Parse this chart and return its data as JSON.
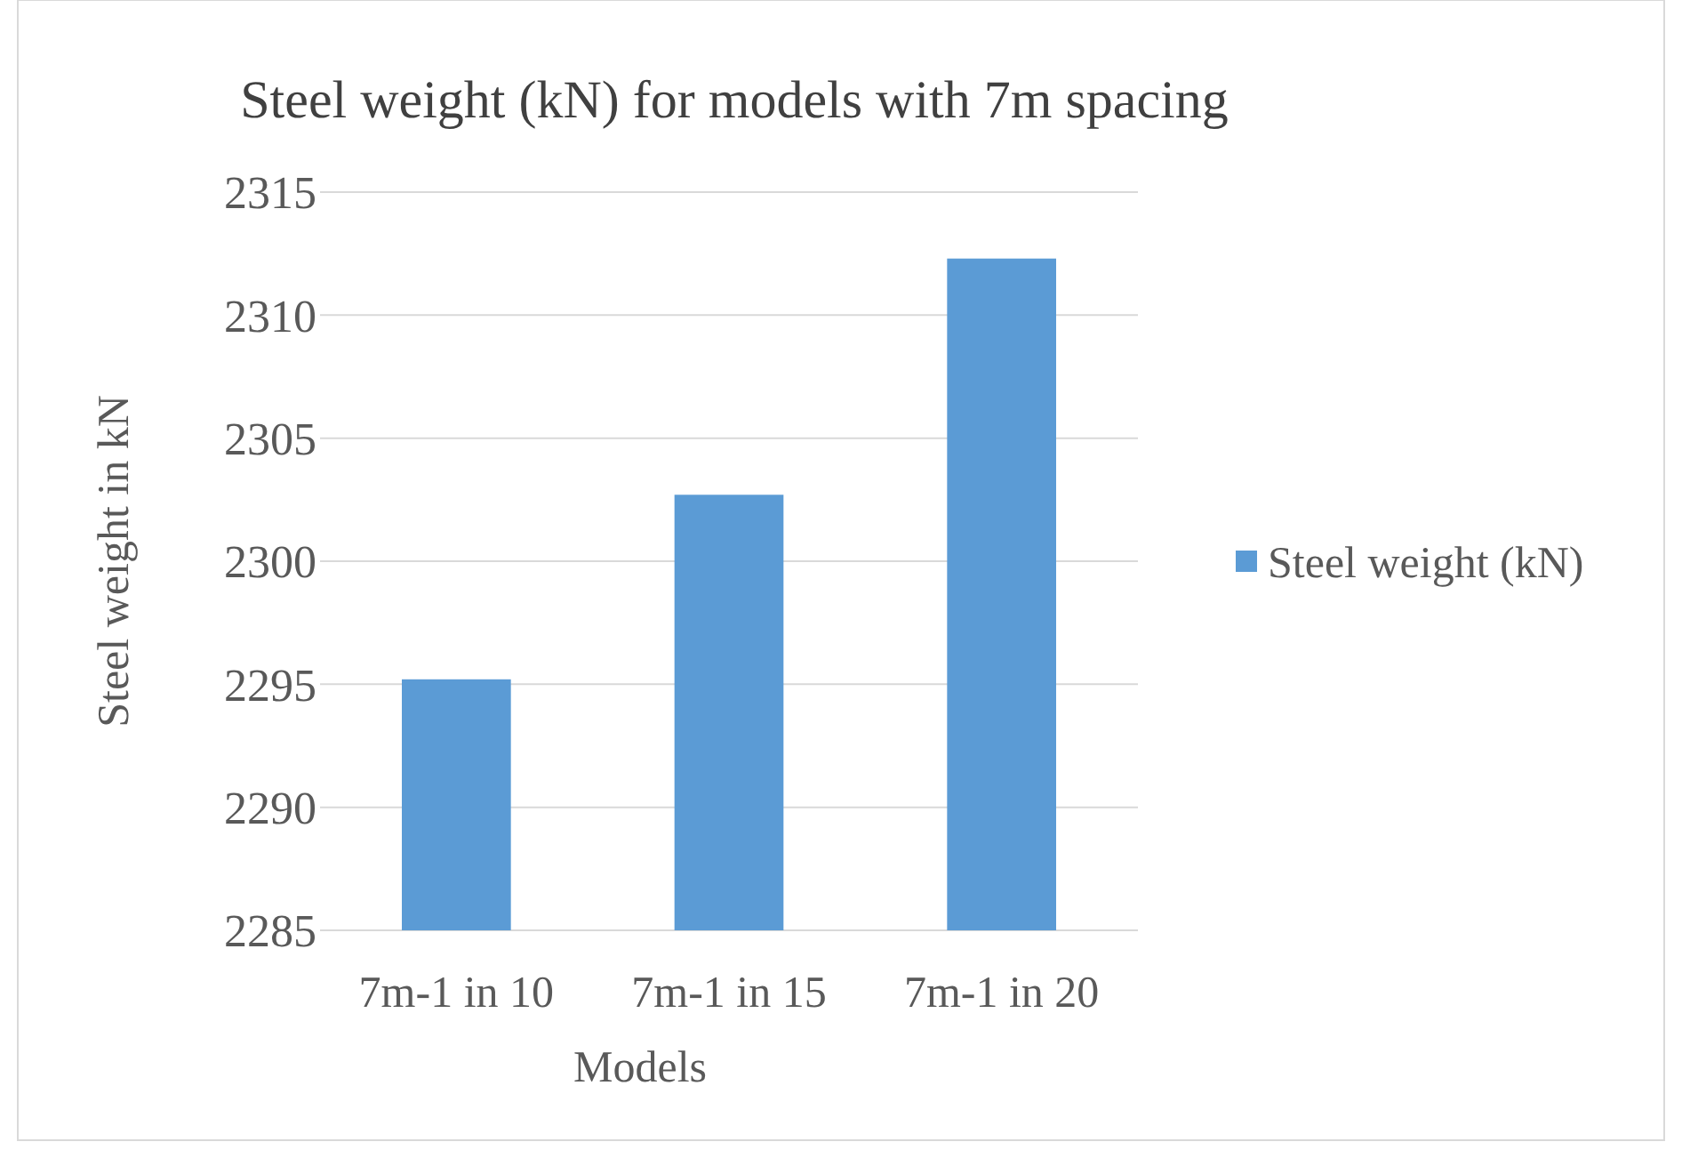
{
  "chart_data": {
    "type": "bar",
    "title": "Steel weight  (kN) for models with  7m spacing",
    "xlabel": "Models",
    "ylabel": "Steel weight  in kN",
    "categories": [
      "7m-1 in 10",
      "7m-1 in 15",
      "7m-1 in 20"
    ],
    "series": [
      {
        "name": "Steel weight (kN)",
        "color": "#5b9bd5",
        "values": [
          2295.2,
          2302.7,
          2312.3
        ]
      }
    ],
    "ylim": [
      2285,
      2315
    ],
    "yticks": [
      2285,
      2290,
      2295,
      2300,
      2305,
      2310,
      2315
    ],
    "grid": "y",
    "legend": "right"
  }
}
